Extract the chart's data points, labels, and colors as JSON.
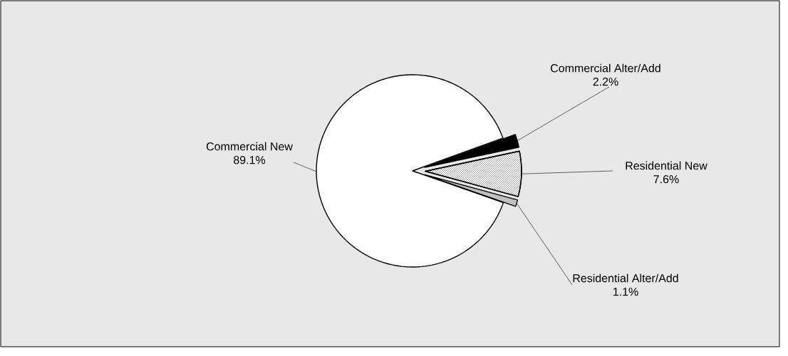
{
  "chart_data": {
    "type": "pie",
    "categories": [
      "Commercial Alter/Add",
      "Residential New",
      "Residential Alter/Add",
      "Commercial New"
    ],
    "values": [
      2.2,
      7.6,
      1.1,
      89.1
    ],
    "colors": [
      "#000000",
      "#ffffff",
      "#c0c0c0",
      "#ffffff"
    ],
    "value_labels": [
      "2.2%",
      "7.6%",
      "1.1%",
      "89.1%"
    ]
  }
}
